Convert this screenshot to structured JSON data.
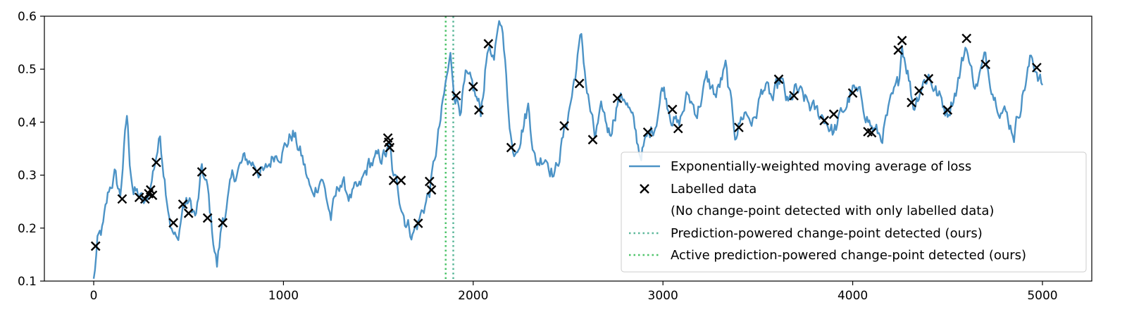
{
  "chart_data": {
    "type": "line",
    "title": "",
    "xlabel": "",
    "ylabel": "",
    "xlim": [
      -260,
      5260
    ],
    "ylim": [
      0.1,
      0.6
    ],
    "xticks": [
      0,
      1000,
      2000,
      3000,
      4000,
      5000
    ],
    "xtick_labels": [
      "0",
      "1000",
      "2000",
      "3000",
      "4000",
      "5000"
    ],
    "yticks": [
      0.1,
      0.2,
      0.3,
      0.4,
      0.5,
      0.6
    ],
    "ytick_labels": [
      "0.1",
      "0.2",
      "0.3",
      "0.4",
      "0.5",
      "0.6"
    ],
    "grid": false,
    "legend_position": "lower-right",
    "colors": {
      "ewma": "#4c93c6",
      "labelled": "#000000",
      "prediction_powered": "#5cb89a",
      "active_prediction_powered": "#4ec46a"
    },
    "series": [
      {
        "name": "Exponentially-weighted moving average of loss",
        "style": "line",
        "x": [
          0,
          20,
          50,
          80,
          110,
          140,
          160,
          175,
          190,
          210,
          240,
          270,
          300,
          330,
          350,
          380,
          410,
          440,
          470,
          500,
          540,
          570,
          600,
          630,
          650,
          680,
          700,
          730,
          760,
          800,
          850,
          900,
          950,
          1000,
          1050,
          1100,
          1150,
          1200,
          1250,
          1300,
          1350,
          1400,
          1450,
          1500,
          1540,
          1560,
          1580,
          1600,
          1640,
          1680,
          1710,
          1740,
          1770,
          1790,
          1810,
          1840,
          1860,
          1880,
          1900,
          1930,
          1960,
          2000,
          2040,
          2080,
          2110,
          2130,
          2150,
          2180,
          2210,
          2250,
          2290,
          2330,
          2380,
          2430,
          2480,
          2520,
          2550,
          2570,
          2600,
          2640,
          2680,
          2720,
          2760,
          2800,
          2840,
          2880,
          2920,
          2960,
          3000,
          3040,
          3080,
          3130,
          3180,
          3230,
          3280,
          3330,
          3380,
          3430,
          3480,
          3530,
          3580,
          3620,
          3660,
          3700,
          3750,
          3800,
          3850,
          3900,
          3950,
          4000,
          4050,
          4100,
          4150,
          4200,
          4240,
          4260,
          4290,
          4320,
          4360,
          4400,
          4450,
          4500,
          4550,
          4600,
          4620,
          4650,
          4700,
          4750,
          4800,
          4850,
          4900,
          4940,
          4970,
          5000
        ],
        "y": [
          0.1,
          0.17,
          0.2,
          0.27,
          0.3,
          0.26,
          0.35,
          0.41,
          0.33,
          0.27,
          0.26,
          0.24,
          0.28,
          0.34,
          0.37,
          0.28,
          0.2,
          0.17,
          0.24,
          0.25,
          0.22,
          0.31,
          0.27,
          0.18,
          0.13,
          0.22,
          0.24,
          0.29,
          0.31,
          0.33,
          0.32,
          0.3,
          0.34,
          0.35,
          0.38,
          0.33,
          0.26,
          0.3,
          0.22,
          0.29,
          0.26,
          0.27,
          0.32,
          0.33,
          0.34,
          0.35,
          0.29,
          0.28,
          0.22,
          0.19,
          0.21,
          0.24,
          0.27,
          0.31,
          0.36,
          0.43,
          0.48,
          0.52,
          0.46,
          0.43,
          0.48,
          0.46,
          0.42,
          0.55,
          0.5,
          0.58,
          0.6,
          0.45,
          0.34,
          0.38,
          0.43,
          0.32,
          0.34,
          0.3,
          0.38,
          0.45,
          0.52,
          0.56,
          0.46,
          0.37,
          0.42,
          0.38,
          0.44,
          0.45,
          0.4,
          0.34,
          0.37,
          0.4,
          0.47,
          0.42,
          0.39,
          0.45,
          0.42,
          0.48,
          0.45,
          0.5,
          0.38,
          0.42,
          0.4,
          0.47,
          0.44,
          0.48,
          0.43,
          0.46,
          0.44,
          0.42,
          0.41,
          0.38,
          0.42,
          0.46,
          0.44,
          0.39,
          0.37,
          0.43,
          0.47,
          0.55,
          0.5,
          0.43,
          0.47,
          0.49,
          0.45,
          0.42,
          0.47,
          0.55,
          0.5,
          0.47,
          0.52,
          0.45,
          0.42,
          0.38,
          0.46,
          0.52,
          0.5,
          0.47
        ]
      },
      {
        "name": "Labelled data",
        "style": "marker-x",
        "x": [
          10,
          150,
          240,
          270,
          290,
          300,
          310,
          330,
          420,
          470,
          500,
          570,
          600,
          680,
          860,
          1550,
          1555,
          1560,
          1580,
          1620,
          1710,
          1770,
          1780,
          1910,
          2000,
          2030,
          2080,
          2200,
          2480,
          2560,
          2630,
          2760,
          2920,
          3050,
          3080,
          3400,
          3610,
          3690,
          3850,
          3900,
          4000,
          4080,
          4100,
          4240,
          4260,
          4310,
          4350,
          4400,
          4500,
          4600,
          4700,
          4970
        ],
        "y": [
          0.166,
          0.255,
          0.258,
          0.255,
          0.265,
          0.272,
          0.262,
          0.324,
          0.21,
          0.245,
          0.228,
          0.306,
          0.219,
          0.21,
          0.307,
          0.37,
          0.362,
          0.352,
          0.29,
          0.29,
          0.209,
          0.288,
          0.272,
          0.45,
          0.467,
          0.423,
          0.548,
          0.352,
          0.393,
          0.473,
          0.367,
          0.445,
          0.381,
          0.424,
          0.388,
          0.39,
          0.481,
          0.45,
          0.403,
          0.415,
          0.455,
          0.382,
          0.38,
          0.536,
          0.554,
          0.437,
          0.459,
          0.482,
          0.423,
          0.558,
          0.509,
          0.503
        ]
      },
      {
        "name": "Prediction-powered change-point detected (ours)",
        "style": "vline-dotted",
        "x": [
          1895
        ]
      },
      {
        "name": "Active prediction-powered change-point detected (ours)",
        "style": "vline-dotted",
        "x": [
          1855
        ]
      }
    ],
    "legend_entries": [
      {
        "key": "ewma",
        "label": "Exponentially-weighted moving average of loss"
      },
      {
        "key": "labelled",
        "label": "Labelled data"
      },
      {
        "key": "none",
        "label": "(No change-point detected with only labelled data)"
      },
      {
        "key": "pp",
        "label": "Prediction-powered change-point detected (ours)"
      },
      {
        "key": "app",
        "label": "Active prediction-powered change-point detected (ours)"
      }
    ]
  }
}
